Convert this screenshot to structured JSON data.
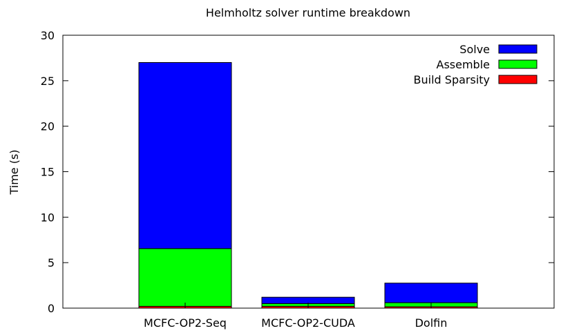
{
  "chart_data": {
    "type": "bar",
    "stacked": true,
    "title": "Helmholtz solver runtime breakdown",
    "xlabel": "",
    "ylabel": "Time (s)",
    "categories": [
      "MCFC-OP2-Seq",
      "MCFC-OP2-CUDA",
      "Dolfin"
    ],
    "series": [
      {
        "name": "Build Sparsity",
        "color": "#ff0000",
        "values": [
          0.2,
          0.2,
          0.15
        ]
      },
      {
        "name": "Assemble",
        "color": "#00ff00",
        "values": [
          6.35,
          0.3,
          0.45
        ]
      },
      {
        "name": "Solve",
        "color": "#0000ff",
        "values": [
          20.45,
          0.7,
          2.15
        ]
      }
    ],
    "legend_order": [
      "Solve",
      "Assemble",
      "Build Sparsity"
    ],
    "legend_position": "top-right",
    "ylim": [
      0,
      30
    ],
    "yticks": [
      0,
      5,
      10,
      15,
      20,
      25,
      30
    ],
    "grid": false
  }
}
